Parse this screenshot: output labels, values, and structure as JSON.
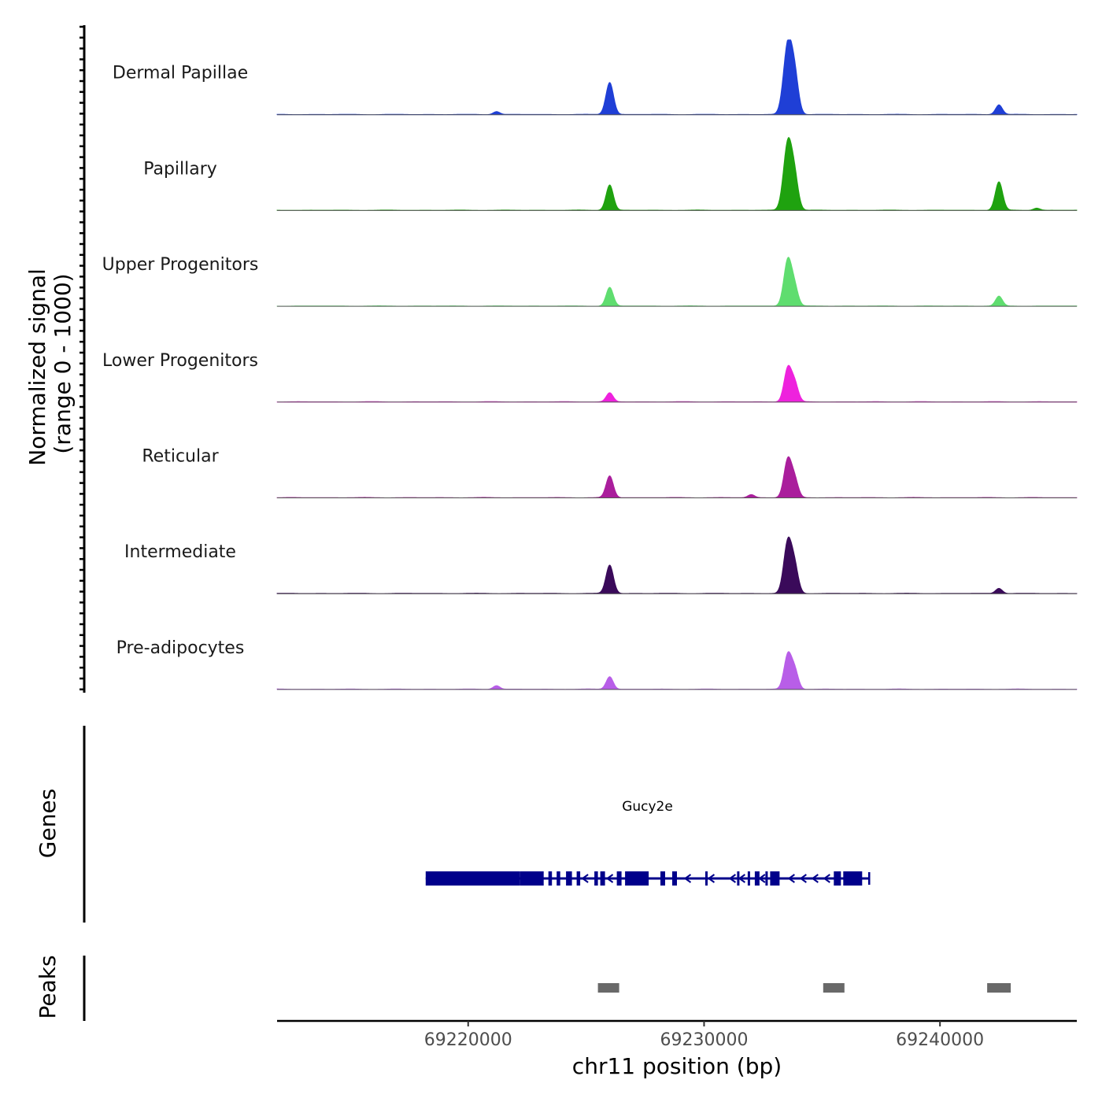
{
  "chart_data": {
    "type": "area",
    "title": "",
    "chromosome": "chr11",
    "xlabel": "chr11 position (bp)",
    "xlim": [
      69211900,
      69245800
    ],
    "x_ticks": [
      69220000,
      69230000,
      69240000
    ],
    "x_tick_labels": [
      "69220000",
      "69230000",
      "69240000"
    ],
    "coverage_ylabel": "Normalized signal\n(range 0 - 1000)",
    "coverage_ylabel_lines": [
      "Normalized signal",
      "(range 0 - 1000)"
    ],
    "ylim": [
      0,
      1000
    ],
    "tracks": [
      {
        "name": "Dermal Papillae",
        "color": "#1F3FD6",
        "peaks": [
          {
            "center": 69233550,
            "height": 930
          },
          {
            "center": 69233850,
            "height": 460
          },
          {
            "center": 69226000,
            "height": 430
          },
          {
            "center": 69242500,
            "height": 130
          },
          {
            "center": 69221200,
            "height": 40
          }
        ]
      },
      {
        "name": "Papillary",
        "color": "#1FA20F",
        "peaks": [
          {
            "center": 69233550,
            "height": 900
          },
          {
            "center": 69233850,
            "height": 370
          },
          {
            "center": 69226000,
            "height": 340
          },
          {
            "center": 69242500,
            "height": 380
          },
          {
            "center": 69244100,
            "height": 30
          }
        ]
      },
      {
        "name": "Upper Progenitors",
        "color": "#5FDD6F",
        "peaks": [
          {
            "center": 69233550,
            "height": 620
          },
          {
            "center": 69233850,
            "height": 220
          },
          {
            "center": 69226000,
            "height": 250
          },
          {
            "center": 69242500,
            "height": 130
          }
        ]
      },
      {
        "name": "Lower Progenitors",
        "color": "#EE22DD",
        "peaks": [
          {
            "center": 69233550,
            "height": 450
          },
          {
            "center": 69233850,
            "height": 230
          },
          {
            "center": 69226000,
            "height": 120
          }
        ]
      },
      {
        "name": "Reticular",
        "color": "#AA1E9C",
        "peaks": [
          {
            "center": 69233550,
            "height": 510
          },
          {
            "center": 69233850,
            "height": 220
          },
          {
            "center": 69226000,
            "height": 290
          },
          {
            "center": 69232000,
            "height": 40
          }
        ]
      },
      {
        "name": "Intermediate",
        "color": "#3A0A5A",
        "peaks": [
          {
            "center": 69233550,
            "height": 690
          },
          {
            "center": 69233850,
            "height": 320
          },
          {
            "center": 69226000,
            "height": 380
          },
          {
            "center": 69242500,
            "height": 70
          }
        ]
      },
      {
        "name": "Pre-adipocytes",
        "color": "#B85EE8",
        "peaks": [
          {
            "center": 69233550,
            "height": 460
          },
          {
            "center": 69233850,
            "height": 240
          },
          {
            "center": 69226000,
            "height": 170
          },
          {
            "center": 69221200,
            "height": 50
          }
        ]
      }
    ],
    "genes_label": "Genes",
    "gene": {
      "name": "Gucy2e",
      "color": "#00008B",
      "start": 69218200,
      "end": 69237000,
      "strand": "-",
      "exons": [
        [
          69218200,
          69222200
        ],
        [
          69222200,
          69223200
        ],
        [
          69223400,
          69223550
        ],
        [
          69223750,
          69223900
        ],
        [
          69224150,
          69224400
        ],
        [
          69224600,
          69224750
        ],
        [
          69225350,
          69225500
        ],
        [
          69225600,
          69225800
        ],
        [
          69226300,
          69226500
        ],
        [
          69226650,
          69227650
        ],
        [
          69228150,
          69228350
        ],
        [
          69228650,
          69228850
        ],
        [
          69230050,
          69230150
        ],
        [
          69231400,
          69231500
        ],
        [
          69231850,
          69231950
        ],
        [
          69232150,
          69232350
        ],
        [
          69232600,
          69232700
        ],
        [
          69232800,
          69233200
        ],
        [
          69235500,
          69235800
        ],
        [
          69235900,
          69236700
        ]
      ],
      "arrows": [
        69224950,
        69226000,
        69229300,
        69230300,
        69231200,
        69231600,
        69232450,
        69233700,
        69234200,
        69234700,
        69235200
      ]
    },
    "peaks_label": "Peaks",
    "called_peaks": [
      [
        69225500,
        69226400
      ],
      [
        69235050,
        69235950
      ],
      [
        69242000,
        69243000
      ]
    ],
    "peak_color": "#696969"
  }
}
